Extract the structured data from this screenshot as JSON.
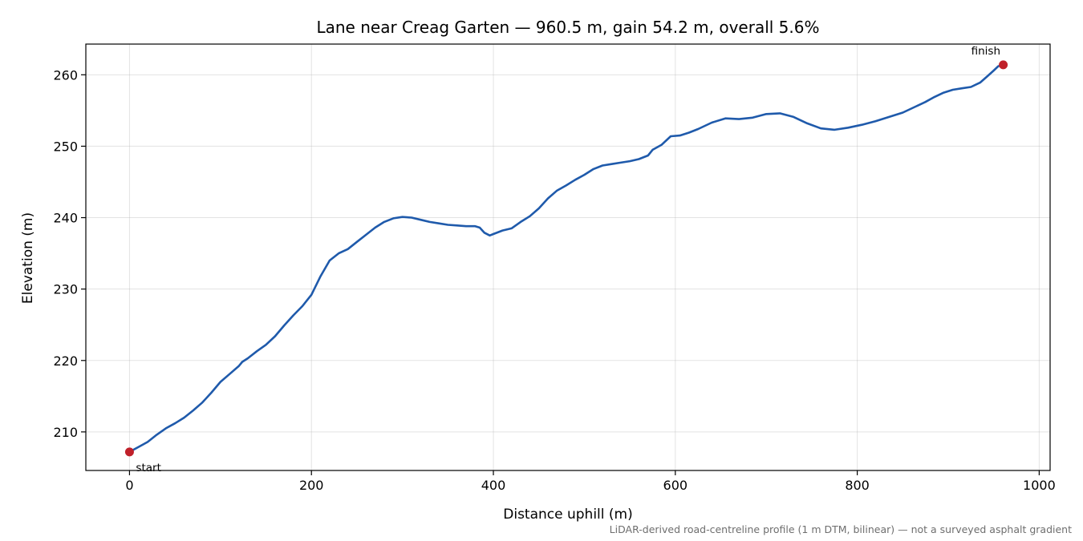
{
  "chart_data": {
    "type": "line",
    "title": "Lane near Creag Garten — 960.5 m, gain 54.2 m, overall 5.6%",
    "xlabel": "Distance uphill (m)",
    "ylabel": "Elevation (m)",
    "xlim": [
      -48,
      1012
    ],
    "ylim": [
      204.6,
      264.3
    ],
    "x_ticks": [
      0,
      200,
      400,
      600,
      800,
      1000
    ],
    "y_ticks": [
      210,
      220,
      230,
      240,
      250,
      260
    ],
    "grid": true,
    "line_color": "#1f5aab",
    "marker_color": "#c0202a",
    "series": [
      {
        "points": [
          [
            0,
            207.2
          ],
          [
            10,
            207.9
          ],
          [
            20,
            208.6
          ],
          [
            30,
            209.6
          ],
          [
            40,
            210.5
          ],
          [
            50,
            211.2
          ],
          [
            60,
            212.0
          ],
          [
            70,
            213.0
          ],
          [
            80,
            214.1
          ],
          [
            90,
            215.5
          ],
          [
            100,
            217.0
          ],
          [
            110,
            218.1
          ],
          [
            120,
            219.2
          ],
          [
            124,
            219.8
          ],
          [
            130,
            220.3
          ],
          [
            140,
            221.3
          ],
          [
            150,
            222.2
          ],
          [
            160,
            223.4
          ],
          [
            170,
            224.9
          ],
          [
            180,
            226.3
          ],
          [
            190,
            227.6
          ],
          [
            200,
            229.2
          ],
          [
            210,
            231.8
          ],
          [
            220,
            234.0
          ],
          [
            230,
            235.0
          ],
          [
            240,
            235.6
          ],
          [
            250,
            236.6
          ],
          [
            260,
            237.6
          ],
          [
            270,
            238.6
          ],
          [
            280,
            239.4
          ],
          [
            290,
            239.9
          ],
          [
            300,
            240.1
          ],
          [
            310,
            240.0
          ],
          [
            320,
            239.7
          ],
          [
            330,
            239.4
          ],
          [
            340,
            239.2
          ],
          [
            350,
            239.0
          ],
          [
            360,
            238.9
          ],
          [
            370,
            238.8
          ],
          [
            380,
            238.8
          ],
          [
            385,
            238.6
          ],
          [
            390,
            237.9
          ],
          [
            396,
            237.5
          ],
          [
            400,
            237.7
          ],
          [
            410,
            238.2
          ],
          [
            420,
            238.5
          ],
          [
            430,
            239.4
          ],
          [
            440,
            240.2
          ],
          [
            450,
            241.3
          ],
          [
            460,
            242.7
          ],
          [
            470,
            243.8
          ],
          [
            480,
            244.5
          ],
          [
            490,
            245.3
          ],
          [
            500,
            246.0
          ],
          [
            510,
            246.8
          ],
          [
            520,
            247.3
          ],
          [
            530,
            247.5
          ],
          [
            540,
            247.7
          ],
          [
            550,
            247.9
          ],
          [
            560,
            248.2
          ],
          [
            570,
            248.7
          ],
          [
            575,
            249.5
          ],
          [
            585,
            250.2
          ],
          [
            595,
            251.4
          ],
          [
            605,
            251.5
          ],
          [
            615,
            251.9
          ],
          [
            625,
            252.4
          ],
          [
            640,
            253.3
          ],
          [
            655,
            253.9
          ],
          [
            670,
            253.8
          ],
          [
            685,
            254.0
          ],
          [
            700,
            254.5
          ],
          [
            715,
            254.6
          ],
          [
            730,
            254.1
          ],
          [
            745,
            253.2
          ],
          [
            760,
            252.5
          ],
          [
            775,
            252.3
          ],
          [
            790,
            252.6
          ],
          [
            805,
            253.0
          ],
          [
            820,
            253.5
          ],
          [
            835,
            254.1
          ],
          [
            850,
            254.7
          ],
          [
            865,
            255.6
          ],
          [
            875,
            256.2
          ],
          [
            885,
            256.9
          ],
          [
            895,
            257.5
          ],
          [
            905,
            257.9
          ],
          [
            915,
            258.1
          ],
          [
            925,
            258.3
          ],
          [
            935,
            258.9
          ],
          [
            943,
            259.8
          ],
          [
            950,
            260.6
          ],
          [
            955,
            261.2
          ],
          [
            960.5,
            261.4
          ]
        ]
      }
    ],
    "markers": [
      {
        "label": "start",
        "x": 0,
        "y": 207.2
      },
      {
        "label": "finish",
        "x": 960.5,
        "y": 261.4
      }
    ],
    "footnote": "LiDAR-derived road-centreline profile (1 m DTM, bilinear) — not a surveyed asphalt gradient"
  }
}
